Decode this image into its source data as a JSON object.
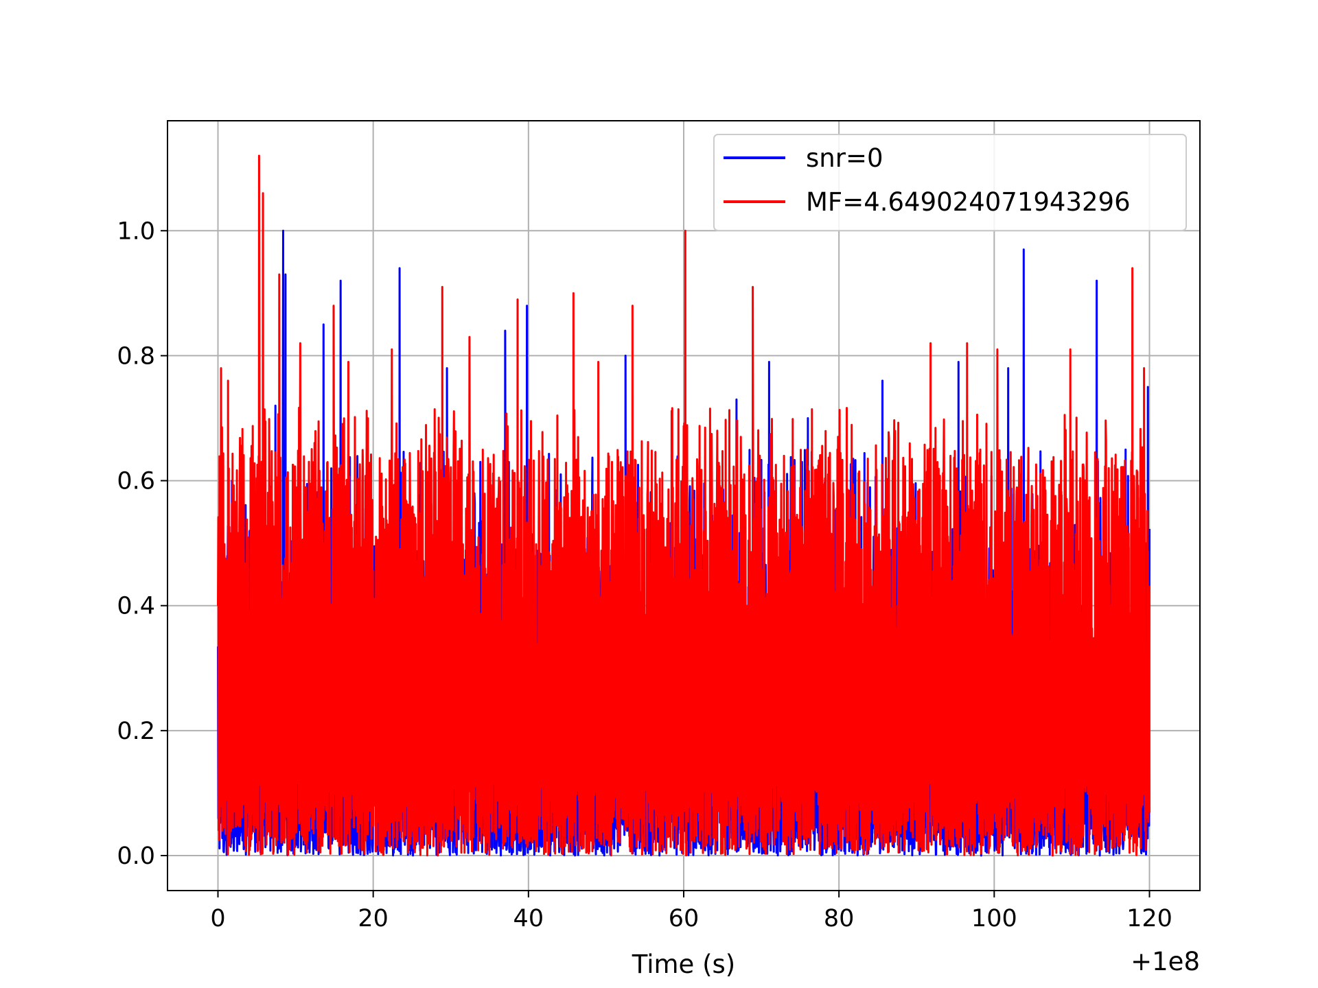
{
  "chart_data": {
    "type": "line",
    "title": "",
    "xlabel": "Time (s)",
    "ylabel": "",
    "x_offset_label": "+1e8",
    "xlim": [
      -6.5,
      126.5
    ],
    "ylim": [
      -0.056,
      1.176
    ],
    "x_ticks": [
      0,
      20,
      40,
      60,
      80,
      100,
      120
    ],
    "x_tick_labels": [
      "0",
      "20",
      "40",
      "60",
      "80",
      "100",
      "120"
    ],
    "y_ticks": [
      0.0,
      0.2,
      0.4,
      0.6,
      0.8,
      1.0
    ],
    "y_tick_labels": [
      "0.0",
      "0.2",
      "0.4",
      "0.6",
      "0.8",
      "1.0"
    ],
    "grid": true,
    "legend_position": "top-right",
    "series": [
      {
        "name": "snr=0",
        "color": "#0000ff",
        "peaks": [
          {
            "x": 0.3,
            "y": 0.26
          },
          {
            "x": 1.8,
            "y": 0.6
          },
          {
            "x": 4.1,
            "y": 0.52
          },
          {
            "x": 7.4,
            "y": 0.72
          },
          {
            "x": 8.4,
            "y": 1.0
          },
          {
            "x": 8.7,
            "y": 0.93
          },
          {
            "x": 13.6,
            "y": 0.85
          },
          {
            "x": 15.8,
            "y": 0.92
          },
          {
            "x": 23.4,
            "y": 0.94
          },
          {
            "x": 29.5,
            "y": 0.78
          },
          {
            "x": 33.8,
            "y": 0.63
          },
          {
            "x": 37.0,
            "y": 0.84
          },
          {
            "x": 39.8,
            "y": 0.88
          },
          {
            "x": 52.5,
            "y": 0.8
          },
          {
            "x": 66.8,
            "y": 0.73
          },
          {
            "x": 71.0,
            "y": 0.79
          },
          {
            "x": 76.0,
            "y": 0.7
          },
          {
            "x": 85.6,
            "y": 0.76
          },
          {
            "x": 95.4,
            "y": 0.79
          },
          {
            "x": 101.8,
            "y": 0.78
          },
          {
            "x": 103.8,
            "y": 0.97
          },
          {
            "x": 113.2,
            "y": 0.92
          },
          {
            "x": 119.8,
            "y": 0.75
          }
        ],
        "floor_min": 0.0,
        "floor_max": 0.06
      },
      {
        "name": "MF=4.649024071943296",
        "color": "#ff0000",
        "peaks": [
          {
            "x": 0.0,
            "y": 0.4
          },
          {
            "x": 0.4,
            "y": 0.78
          },
          {
            "x": 1.3,
            "y": 0.76
          },
          {
            "x": 5.3,
            "y": 1.12
          },
          {
            "x": 5.8,
            "y": 1.06
          },
          {
            "x": 7.9,
            "y": 0.93
          },
          {
            "x": 10.6,
            "y": 0.82
          },
          {
            "x": 14.9,
            "y": 0.88
          },
          {
            "x": 16.8,
            "y": 0.79
          },
          {
            "x": 22.4,
            "y": 0.81
          },
          {
            "x": 28.9,
            "y": 0.91
          },
          {
            "x": 32.4,
            "y": 0.83
          },
          {
            "x": 38.6,
            "y": 0.89
          },
          {
            "x": 45.8,
            "y": 0.9
          },
          {
            "x": 49.0,
            "y": 0.79
          },
          {
            "x": 53.4,
            "y": 0.88
          },
          {
            "x": 60.2,
            "y": 1.0
          },
          {
            "x": 68.9,
            "y": 0.91
          },
          {
            "x": 91.8,
            "y": 0.82
          },
          {
            "x": 96.5,
            "y": 0.82
          },
          {
            "x": 100.4,
            "y": 0.81
          },
          {
            "x": 109.8,
            "y": 0.81
          },
          {
            "x": 117.8,
            "y": 0.94
          },
          {
            "x": 119.3,
            "y": 0.78
          }
        ],
        "floor_min": 0.0,
        "floor_max": 0.25
      }
    ],
    "x_range": [
      0,
      120
    ],
    "samples_per_series": 3000
  }
}
